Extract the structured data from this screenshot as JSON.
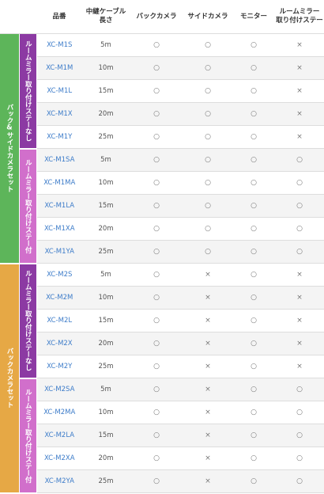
{
  "headers": {
    "model": "品番",
    "cable_line1": "中継ケーブル",
    "cable_line2": "長さ",
    "back_camera": "バックカメラ",
    "side_camera": "サイドカメラ",
    "monitor": "モニター",
    "mirror_line1": "ルームミラー",
    "mirror_line2": "取り付けステー"
  },
  "groups": [
    {
      "label": "バック&サイドカメラセット",
      "color": "#5db55a",
      "subgroups": [
        {
          "label": "ルームミラー取り付けステーなし",
          "color": "#8c3aa3",
          "rows": [
            {
              "model": "XC-M1S",
              "cable": "5m",
              "back": "○",
              "side": "○",
              "monitor": "○",
              "mirror": "×"
            },
            {
              "model": "XC-M1M",
              "cable": "10m",
              "back": "○",
              "side": "○",
              "monitor": "○",
              "mirror": "×"
            },
            {
              "model": "XC-M1L",
              "cable": "15m",
              "back": "○",
              "side": "○",
              "monitor": "○",
              "mirror": "×"
            },
            {
              "model": "XC-M1X",
              "cable": "20m",
              "back": "○",
              "side": "○",
              "monitor": "○",
              "mirror": "×"
            },
            {
              "model": "XC-M1Y",
              "cable": "25m",
              "back": "○",
              "side": "○",
              "monitor": "○",
              "mirror": "×"
            }
          ]
        },
        {
          "label": "ルームミラー取り付けステー付",
          "color": "#d16fcb",
          "rows": [
            {
              "model": "XC-M1SA",
              "cable": "5m",
              "back": "○",
              "side": "○",
              "monitor": "○",
              "mirror": "○"
            },
            {
              "model": "XC-M1MA",
              "cable": "10m",
              "back": "○",
              "side": "○",
              "monitor": "○",
              "mirror": "○"
            },
            {
              "model": "XC-M1LA",
              "cable": "15m",
              "back": "○",
              "side": "○",
              "monitor": "○",
              "mirror": "○"
            },
            {
              "model": "XC-M1XA",
              "cable": "20m",
              "back": "○",
              "side": "○",
              "monitor": "○",
              "mirror": "○"
            },
            {
              "model": "XC-M1YA",
              "cable": "25m",
              "back": "○",
              "side": "○",
              "monitor": "○",
              "mirror": "○"
            }
          ]
        }
      ]
    },
    {
      "label": "バックカメラセット",
      "color": "#e6a845",
      "subgroups": [
        {
          "label": "ルームミラー取り付けステーなし",
          "color": "#8c3aa3",
          "rows": [
            {
              "model": "XC-M2S",
              "cable": "5m",
              "back": "○",
              "side": "×",
              "monitor": "○",
              "mirror": "×"
            },
            {
              "model": "XC-M2M",
              "cable": "10m",
              "back": "○",
              "side": "×",
              "monitor": "○",
              "mirror": "×"
            },
            {
              "model": "XC-M2L",
              "cable": "15m",
              "back": "○",
              "side": "×",
              "monitor": "○",
              "mirror": "×"
            },
            {
              "model": "XC-M2X",
              "cable": "20m",
              "back": "○",
              "side": "×",
              "monitor": "○",
              "mirror": "×"
            },
            {
              "model": "XC-M2Y",
              "cable": "25m",
              "back": "○",
              "side": "×",
              "monitor": "○",
              "mirror": "×"
            }
          ]
        },
        {
          "label": "ルームミラー取り付けステー付",
          "color": "#d16fcb",
          "rows": [
            {
              "model": "XC-M2SA",
              "cable": "5m",
              "back": "○",
              "side": "×",
              "monitor": "○",
              "mirror": "○"
            },
            {
              "model": "XC-M2MA",
              "cable": "10m",
              "back": "○",
              "side": "×",
              "monitor": "○",
              "mirror": "○"
            },
            {
              "model": "XC-M2LA",
              "cable": "15m",
              "back": "○",
              "side": "×",
              "monitor": "○",
              "mirror": "○"
            },
            {
              "model": "XC-M2XA",
              "cable": "20m",
              "back": "○",
              "side": "×",
              "monitor": "○",
              "mirror": "○"
            },
            {
              "model": "XC-M2YA",
              "cable": "25m",
              "back": "○",
              "side": "×",
              "monitor": "○",
              "mirror": "○"
            }
          ]
        }
      ]
    }
  ]
}
